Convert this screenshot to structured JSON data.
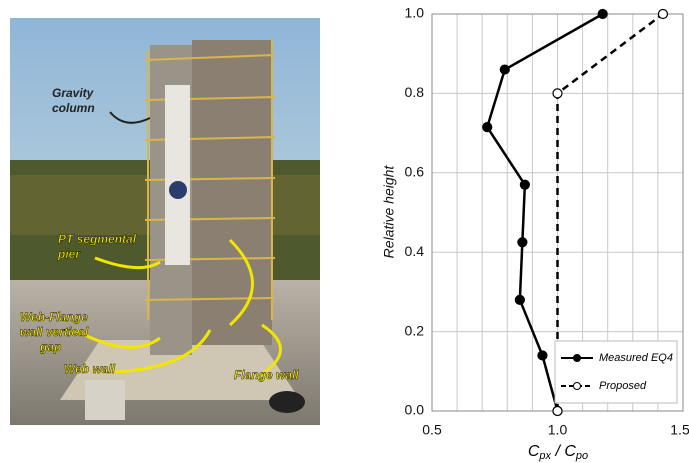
{
  "photo_labels": [
    {
      "lines": [
        "Gravity",
        "column"
      ],
      "color": "#222222"
    },
    {
      "lines": [
        "PT segmental",
        "pier"
      ],
      "color": "#f2e600"
    },
    {
      "lines": [
        "Web-Flange",
        "wall vertical",
        "gap"
      ],
      "color": "#f2e600"
    },
    {
      "lines": [
        "Web wall"
      ],
      "color": "#f2e600"
    },
    {
      "lines": [
        "Flange wall"
      ],
      "color": "#f2e600"
    }
  ],
  "chart_data": {
    "type": "line",
    "xlabel": [
      "C",
      "px",
      " / C",
      "po"
    ],
    "ylabel": "Relative height",
    "xlim": [
      0.5,
      1.5
    ],
    "xticks": [
      {
        "value": 0.5,
        "label": "0.5"
      },
      {
        "value": 1,
        "label": "1.0"
      },
      {
        "value": 1.5,
        "label": "1.5"
      }
    ],
    "xminor": [
      0.6,
      0.7,
      0.8,
      0.9,
      1.1,
      1.2,
      1.3,
      1.4
    ],
    "ylim": [
      0,
      1
    ],
    "yticks": [
      {
        "value": 0,
        "label": "0.0"
      },
      0.2,
      0.4,
      0.6,
      0.8,
      {
        "value": 1,
        "label": "1.0"
      }
    ],
    "grid": true,
    "legend": "lower right",
    "series": [
      {
        "name": "Measured EQ4",
        "color": "#000000",
        "dashed": false,
        "filled": true,
        "x": [
          1.18,
          0.79,
          0.72,
          0.87,
          0.86,
          0.85,
          0.94,
          1.0
        ],
        "values": [
          1.0,
          0.86,
          0.715,
          0.57,
          0.425,
          0.28,
          0.14,
          0.0
        ]
      },
      {
        "name": "Proposed",
        "color": "#000000",
        "dashed": true,
        "filled": false,
        "x": [
          1.0,
          1.0,
          1.42
        ],
        "values": [
          0.0,
          0.8,
          1.0
        ]
      }
    ]
  }
}
